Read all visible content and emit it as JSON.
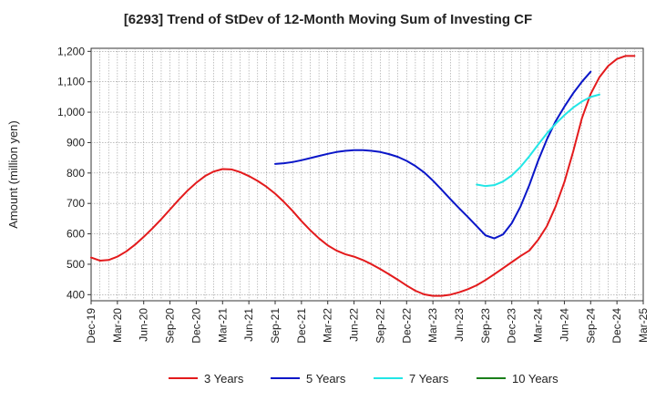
{
  "chart_data": {
    "type": "line",
    "title": "[6293]  Trend of StDev of 12-Month Moving Sum of Investing CF",
    "xlabel": "",
    "ylabel": "Amount (million yen)",
    "ylim": [
      380,
      1210
    ],
    "yticks": [
      400,
      500,
      600,
      700,
      800,
      900,
      1000,
      1100,
      1200
    ],
    "ytick_labels": [
      "400",
      "500",
      "600",
      "700",
      "800",
      "900",
      "1,000",
      "1,100",
      "1,200"
    ],
    "x_start": "Dec-19",
    "x_end": "Mar-25",
    "xtick_labels": [
      "Dec-19",
      "Mar-20",
      "Jun-20",
      "Sep-20",
      "Dec-20",
      "Mar-21",
      "Jun-21",
      "Sep-21",
      "Dec-21",
      "Mar-22",
      "Jun-22",
      "Sep-22",
      "Dec-22",
      "Mar-23",
      "Jun-23",
      "Sep-23",
      "Dec-23",
      "Mar-24",
      "Jun-24",
      "Sep-24",
      "Dec-24",
      "Mar-25"
    ],
    "grid": true,
    "legend_position": "bottom",
    "series": [
      {
        "name": "3 Years",
        "color": "#e31a1c",
        "start": "Dec-19",
        "values": [
          522,
          512,
          514,
          525,
          542,
          564,
          590,
          618,
          648,
          680,
          712,
          742,
          768,
          790,
          805,
          813,
          812,
          803,
          790,
          774,
          755,
          732,
          705,
          675,
          642,
          612,
          585,
          562,
          545,
          533,
          525,
          514,
          500,
          484,
          467,
          449,
          430,
          413,
          401,
          396,
          396,
          400,
          408,
          418,
          431,
          448,
          467,
          487,
          507,
          527,
          545,
          580,
          625,
          690,
          770,
          870,
          980,
          1060,
          1115,
          1152,
          1175,
          1185,
          1185
        ]
      },
      {
        "name": "5 Years",
        "color": "#0a16c8",
        "start": "Sep-21",
        "values": [
          830,
          832,
          836,
          842,
          849,
          856,
          863,
          869,
          873,
          875,
          875,
          873,
          869,
          862,
          853,
          840,
          823,
          802,
          775,
          745,
          714,
          684,
          655,
          625,
          595,
          585,
          598,
          635,
          690,
          760,
          840,
          910,
          970,
          1018,
          1062,
          1100,
          1133
        ]
      },
      {
        "name": "7 Years",
        "color": "#22e6e6",
        "start": "Aug-23",
        "values": [
          762,
          757,
          760,
          772,
          792,
          820,
          855,
          893,
          930,
          962,
          990,
          1015,
          1035,
          1050,
          1058
        ]
      },
      {
        "name": "10 Years",
        "color": "#1a7f1a",
        "start": "Sep-24",
        "values": []
      }
    ]
  }
}
